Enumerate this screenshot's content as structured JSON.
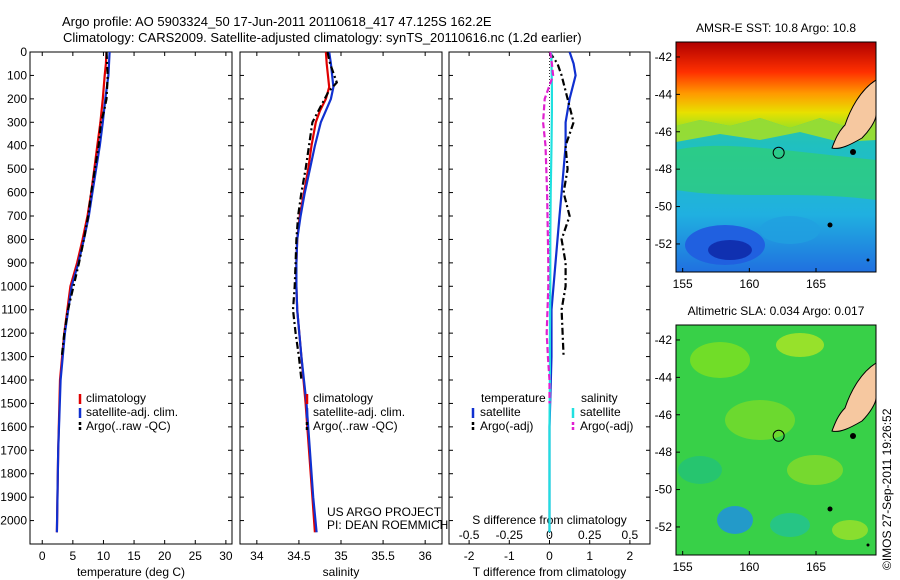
{
  "header": {
    "line1": "Argo profile: AO 5903324_50 17-Jun-2011 20110618_417 47.125S 162.2E",
    "line2": "Climatology: CARS2009. Satellite-adjusted climatology: synTS_20110616.nc (1.2d earlier)"
  },
  "colors": {
    "climatology": "#e00000",
    "satellite": "#1030d0",
    "argo": "#000000",
    "salinity_satellite": "#20e0e0",
    "salinity_argo": "#e020d0"
  },
  "chart_data": [
    {
      "type": "line",
      "panel": "temperature",
      "xlabel": "temperature (deg C)",
      "ylabel": "",
      "xlim": [
        -2,
        31
      ],
      "ylim": [
        2100,
        0
      ],
      "xticks": [
        0,
        5,
        10,
        15,
        20,
        25,
        30
      ],
      "yticks": [
        0,
        100,
        200,
        300,
        400,
        500,
        600,
        700,
        800,
        900,
        1000,
        1100,
        1200,
        1300,
        1400,
        1500,
        1600,
        1700,
        1800,
        1900,
        2000
      ],
      "legend": [
        "climatology",
        "satellite-adj. clim.",
        "Argo(..raw -QC)"
      ],
      "series": [
        {
          "name": "climatology",
          "color": "#e00000",
          "style": "solid",
          "x": [
            10.5,
            10.4,
            10.2,
            9.9,
            9.5,
            9.0,
            8.5,
            8.0,
            7.4,
            6.6,
            5.7,
            4.6,
            3.6,
            2.9,
            2.6,
            2.4
          ],
          "y": [
            0,
            50,
            100,
            200,
            300,
            400,
            500,
            600,
            700,
            800,
            900,
            1000,
            1200,
            1400,
            1700,
            2050
          ]
        },
        {
          "name": "satellite-adj. clim.",
          "color": "#1030d0",
          "style": "solid",
          "x": [
            11.0,
            10.9,
            10.8,
            10.3,
            9.9,
            9.4,
            8.8,
            8.2,
            7.6,
            6.8,
            5.9,
            4.8,
            3.7,
            3.0,
            2.6,
            2.4
          ],
          "y": [
            0,
            50,
            100,
            200,
            300,
            400,
            500,
            600,
            700,
            800,
            900,
            1000,
            1200,
            1400,
            1700,
            2050
          ]
        },
        {
          "name": "Argo(..raw -QC)",
          "color": "#000000",
          "style": "dashdot",
          "x": [
            10.5,
            10.6,
            10.7,
            10.5,
            10.1,
            9.6,
            9.2,
            8.6,
            8.0,
            7.5,
            6.8,
            6.0,
            5.1,
            4.2,
            3.6,
            3.2
          ],
          "y": [
            0,
            50,
            100,
            200,
            250,
            300,
            400,
            500,
            600,
            700,
            800,
            900,
            1000,
            1100,
            1200,
            1300
          ]
        }
      ]
    },
    {
      "type": "line",
      "panel": "salinity",
      "xlabel": "salinity",
      "ylabel": "",
      "xlim": [
        33.8,
        36.2
      ],
      "ylim": [
        2100,
        0
      ],
      "xticks": [
        34,
        34.5,
        35,
        35.5,
        36
      ],
      "legend": [
        "climatology",
        "satellite-adj. clim.",
        "Argo(..raw -QC)"
      ],
      "annotation": [
        "US ARGO PROJECT",
        "PI: DEAN ROEMMICH"
      ],
      "series": [
        {
          "name": "climatology",
          "color": "#e00000",
          "style": "solid",
          "x": [
            34.82,
            34.83,
            34.86,
            34.82,
            34.75,
            34.7,
            34.65,
            34.61,
            34.56,
            34.51,
            34.48,
            34.47,
            34.47,
            34.48,
            34.53,
            34.58,
            34.62,
            34.66,
            34.69
          ],
          "y": [
            0,
            50,
            150,
            200,
            250,
            300,
            400,
            500,
            600,
            700,
            800,
            900,
            1000,
            1100,
            1300,
            1500,
            1700,
            1900,
            2050
          ]
        },
        {
          "name": "satellite-adj. clim.",
          "color": "#1030d0",
          "style": "solid",
          "x": [
            34.86,
            34.88,
            34.91,
            34.88,
            34.82,
            34.76,
            34.69,
            34.63,
            34.57,
            34.52,
            34.48,
            34.47,
            34.47,
            34.48,
            34.53,
            34.59,
            34.63,
            34.67,
            34.71
          ],
          "y": [
            0,
            50,
            150,
            200,
            250,
            300,
            400,
            500,
            600,
            700,
            800,
            900,
            1000,
            1100,
            1300,
            1500,
            1700,
            1900,
            2050
          ]
        },
        {
          "name": "Argo(..raw -QC)",
          "color": "#000000",
          "style": "dashdot",
          "x": [
            34.84,
            34.87,
            34.95,
            34.85,
            34.66,
            34.62,
            34.58,
            34.53,
            34.49,
            34.47,
            34.46,
            34.45,
            34.43,
            34.46,
            34.5,
            34.53
          ],
          "y": [
            0,
            50,
            130,
            170,
            300,
            400,
            500,
            600,
            700,
            800,
            900,
            1000,
            1100,
            1200,
            1300,
            1400
          ]
        }
      ]
    },
    {
      "type": "line",
      "panel": "differences",
      "xlabel": "T difference from climatology",
      "xlabel2": "S difference from climatology",
      "xlim": [
        -2.5,
        2.5
      ],
      "ylim": [
        2100,
        0
      ],
      "xticks": [
        -2,
        -1,
        0,
        1,
        2
      ],
      "xticklabels": [
        "-2",
        "-1",
        "0",
        "1",
        "2"
      ],
      "xticks2": [
        -0.5,
        -0.25,
        0,
        0.25,
        0.5
      ],
      "legend": [
        "temperature",
        "satellite",
        "Argo(-adj)",
        "salinity",
        "satellite",
        "Argo(-adj)"
      ],
      "series": [
        {
          "name": "satellite",
          "group": "temperature",
          "color": "#1030d0",
          "style": "solid",
          "x": [
            0.5,
            0.6,
            0.65,
            0.5,
            0.4,
            0.4,
            0.35,
            0.3,
            0.25,
            0.2,
            0.15,
            0.1,
            0.05,
            0.05,
            0.0,
            0.0
          ],
          "y": [
            0,
            50,
            100,
            200,
            300,
            400,
            500,
            600,
            700,
            800,
            900,
            1000,
            1100,
            1300,
            1600,
            2050
          ]
        },
        {
          "name": "Argo(-adj)",
          "group": "temperature",
          "color": "#000000",
          "style": "dashdot",
          "x": [
            0.0,
            0.2,
            0.3,
            0.45,
            0.6,
            0.4,
            0.45,
            0.35,
            0.5,
            0.3,
            0.4,
            0.4,
            0.3,
            0.35
          ],
          "y": [
            0,
            50,
            100,
            200,
            300,
            400,
            500,
            600,
            700,
            800,
            900,
            1000,
            1100,
            1300
          ]
        },
        {
          "name": "satellite",
          "group": "salinity",
          "color": "#20e0e0",
          "style": "solid",
          "x": [
            0.04,
            0.05,
            0.06,
            0.06,
            0.05,
            0.03,
            0.02,
            0.02,
            0.01,
            0.01,
            0.0,
            0.0,
            0.0,
            0.0
          ],
          "y": [
            0,
            50,
            150,
            250,
            400,
            600,
            800,
            1000,
            1200,
            1400,
            1600,
            1800,
            1900,
            2050
          ]
        },
        {
          "name": "Argo(-adj)",
          "group": "salinity",
          "color": "#e020d0",
          "style": "dashed",
          "x": [
            0.02,
            0.06,
            0.09,
            -0.12,
            -0.16,
            -0.1,
            -0.06,
            -0.04,
            -0.03,
            -0.03,
            -0.05,
            -0.07,
            -0.04,
            0.0,
            0.0
          ],
          "y": [
            0,
            50,
            100,
            200,
            300,
            400,
            600,
            800,
            900,
            1000,
            1100,
            1200,
            1300,
            1400,
            1500
          ]
        }
      ]
    }
  ],
  "maps": [
    {
      "title": "AMSR-E SST: 10.8 Argo: 10.8",
      "xticks": [
        155,
        160,
        165
      ],
      "yticks": [
        -42,
        -44,
        -46,
        -48,
        -50,
        -52
      ],
      "marker_lon": 162.2,
      "marker_lat": -47.125
    },
    {
      "title": "Altimetric SLA: 0.034 Argo: 0.017",
      "xticks": [
        155,
        160,
        165
      ],
      "yticks": [
        -42,
        -44,
        -46,
        -48,
        -50,
        -52
      ],
      "marker_lon": 162.2,
      "marker_lat": -47.125
    }
  ],
  "watermark": "©IMOS 27-Sep-2011 19:26:52"
}
